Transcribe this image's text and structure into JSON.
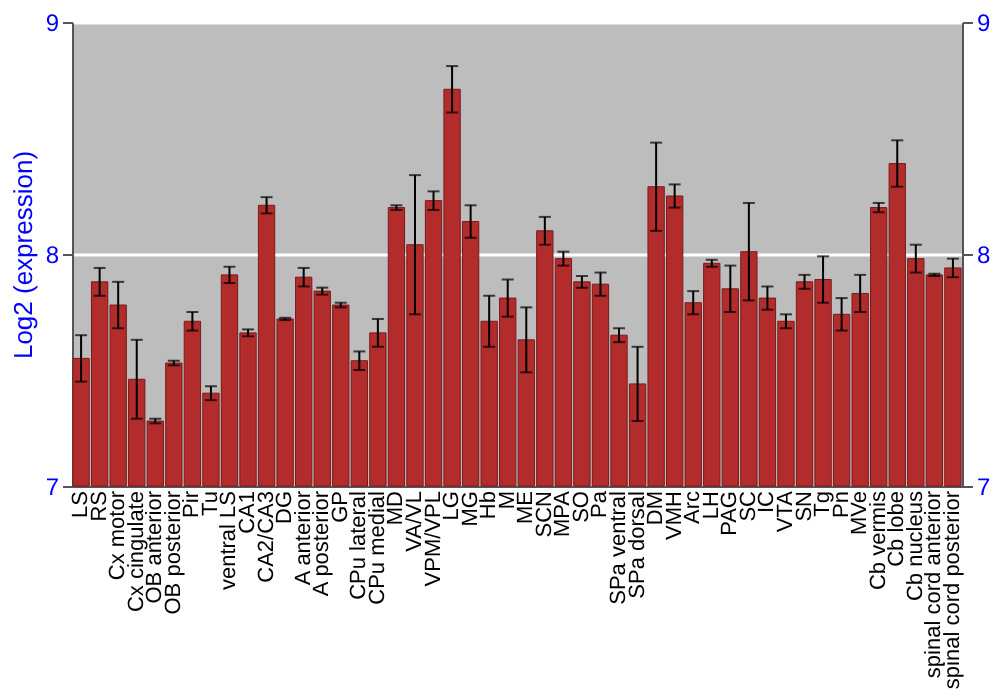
{
  "chart_data": {
    "type": "bar",
    "ylabel": "Log2 (expression)",
    "categories": [
      "LS",
      "RS",
      "Cx motor",
      "Cx cingulate",
      "OB anterior",
      "OB posterior",
      "Pir",
      "Tu",
      "ventral LS",
      "CA1",
      "CA2/CA3",
      "DG",
      "A anterior",
      "A posterior",
      "GP",
      "CPu lateral",
      "CPu medial",
      "MD",
      "VA/VL",
      "VPM/VPL",
      "LG",
      "MG",
      "Hb",
      "M",
      "ME",
      "SCN",
      "MPA",
      "SO",
      "Pa",
      "SPa ventral",
      "SPa dorsal",
      "DM",
      "VMH",
      "Arc",
      "LH",
      "PAG",
      "SC",
      "IC",
      "VTA",
      "SN",
      "Tg",
      "Pn",
      "MVe",
      "Cb vermis",
      "Cb lobe",
      "Cb nucleus",
      "spinal cord anterior",
      "spinal cord posterior"
    ],
    "values": [
      7.55,
      7.88,
      7.78,
      7.46,
      7.28,
      7.53,
      7.71,
      7.4,
      7.91,
      7.66,
      8.21,
      7.72,
      7.9,
      7.84,
      7.78,
      7.54,
      7.66,
      8.2,
      8.04,
      8.23,
      8.71,
      8.14,
      7.71,
      7.81,
      7.63,
      8.1,
      7.98,
      7.88,
      7.87,
      7.65,
      7.44,
      8.29,
      8.25,
      7.79,
      7.96,
      7.85,
      8.01,
      7.81,
      7.71,
      7.88,
      7.89,
      7.74,
      7.83,
      8.2,
      8.39,
      7.98,
      7.91,
      7.94
    ],
    "errors": [
      0.1,
      0.06,
      0.1,
      0.17,
      0.01,
      0.01,
      0.04,
      0.03,
      0.035,
      0.015,
      0.035,
      0.005,
      0.04,
      0.015,
      0.01,
      0.04,
      0.06,
      0.01,
      0.3,
      0.04,
      0.1,
      0.07,
      0.11,
      0.08,
      0.14,
      0.06,
      0.03,
      0.025,
      0.05,
      0.03,
      0.16,
      0.19,
      0.05,
      0.05,
      0.015,
      0.1,
      0.21,
      0.05,
      0.03,
      0.03,
      0.1,
      0.07,
      0.08,
      0.02,
      0.1,
      0.06,
      0.005,
      0.04
    ],
    "color": "#b22c2c",
    "ylim": [
      7,
      9
    ],
    "yticks": [
      7,
      8,
      9
    ],
    "y2lim": [
      7,
      9
    ],
    "y2ticks": [
      7,
      8,
      9
    ],
    "grid": "y"
  }
}
